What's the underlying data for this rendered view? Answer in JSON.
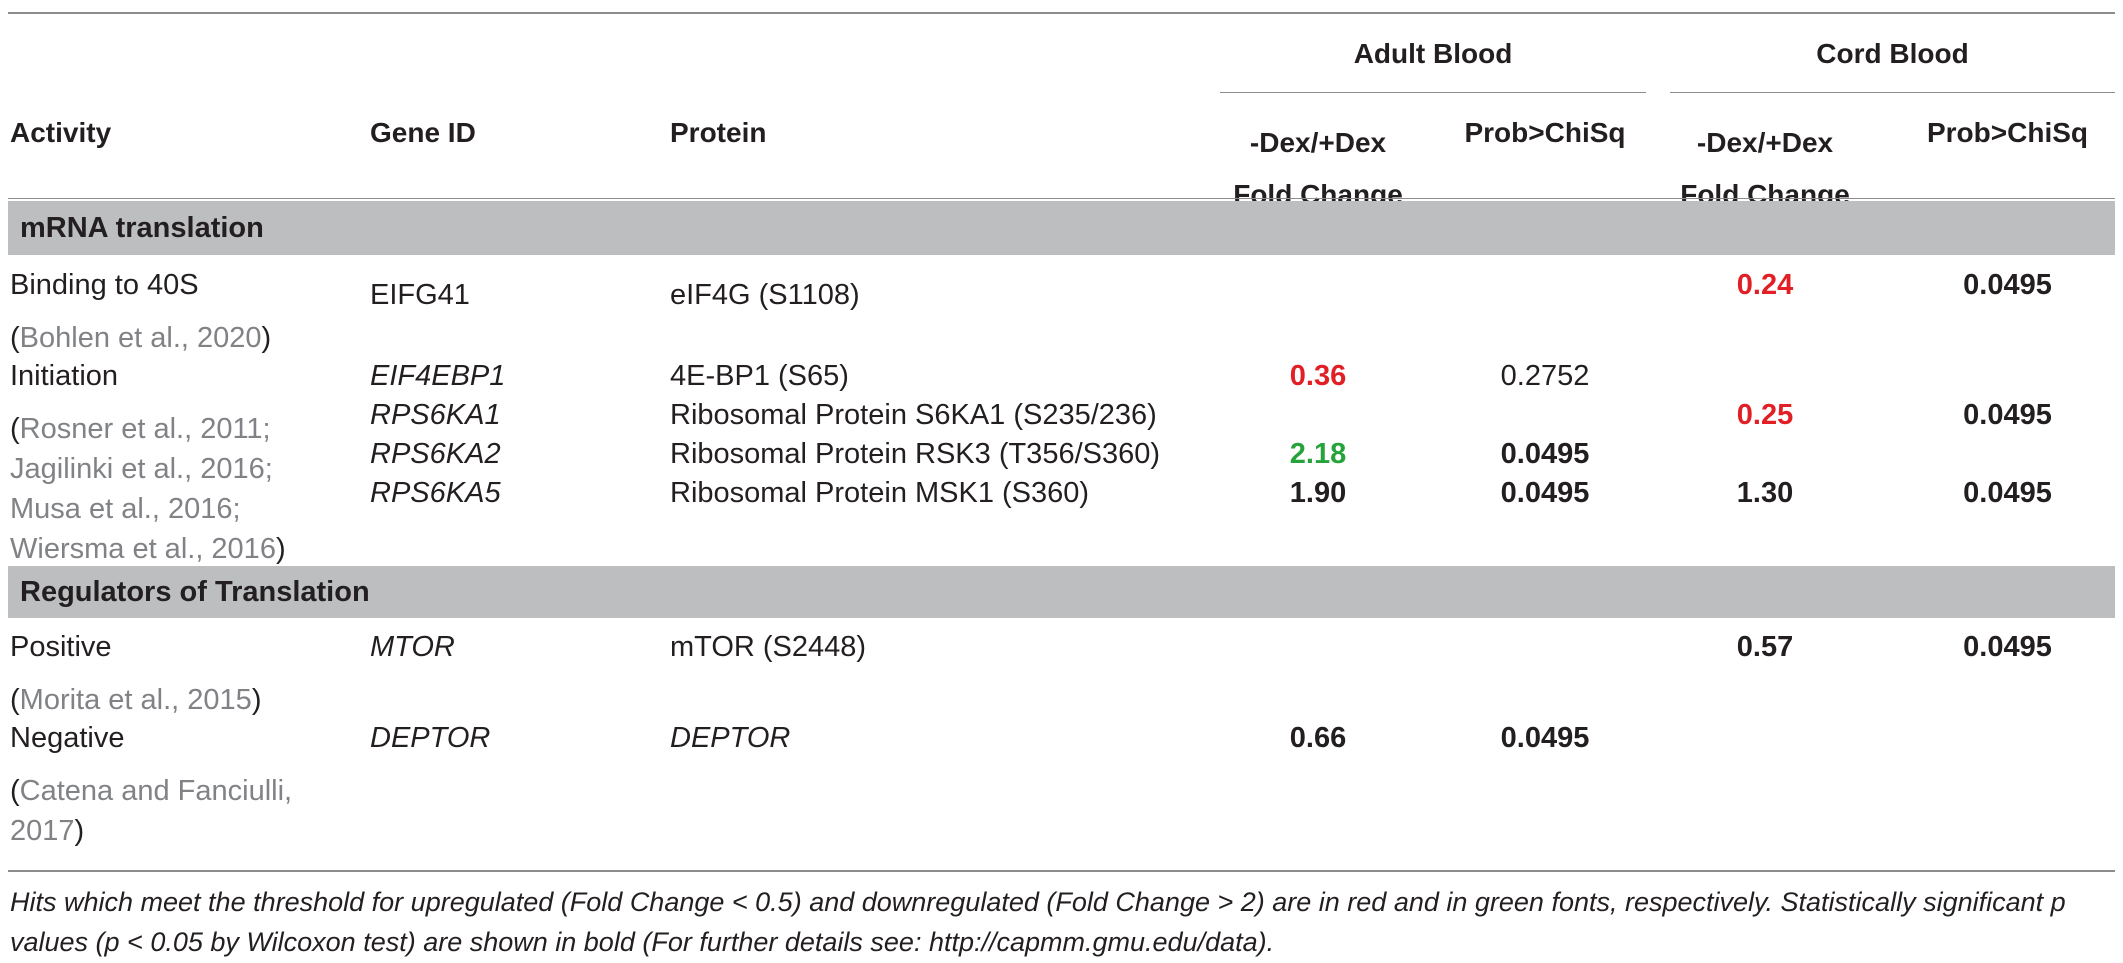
{
  "header": {
    "activity": "Activity",
    "gene_id": "Gene ID",
    "protein": "Protein",
    "adult_blood": "Adult Blood",
    "cord_blood": "Cord Blood",
    "fold_change_l1": "-Dex/+Dex",
    "fold_change_l2": "Fold Change",
    "prob": "Prob>ChiSq"
  },
  "sections": [
    {
      "title": "mRNA translation"
    },
    {
      "title": "Regulators of Translation"
    }
  ],
  "activities": [
    {
      "label": "Binding to 40S",
      "ref_pre": "(",
      "ref": "Bohlen et al., 2020",
      "ref_post": ")"
    },
    {
      "label": "Initiation",
      "ref_pre": "(",
      "ref": "Rosner et al., 2011; Jagilinki et al., 2016; Musa et al., 2016; Wiersma et al., 2016",
      "ref_post": ")"
    },
    {
      "label": "Positive",
      "ref_pre": "(",
      "ref": "Morita et al., 2015",
      "ref_post": ")"
    },
    {
      "label": "Negative",
      "ref_pre": "(",
      "ref": "Catena and Fanciulli, 2017",
      "ref_post": ")"
    }
  ],
  "rows": [
    {
      "gene": "EIFG41",
      "protein": "eIF4G (S1108)",
      "adult_fc": "",
      "adult_p": "",
      "cord_fc": "0.24",
      "cord_p": "0.0495"
    },
    {
      "gene": "EIF4EBP1",
      "protein": "4E-BP1 (S65)",
      "adult_fc": "0.36",
      "adult_p": "0.2752",
      "cord_fc": "",
      "cord_p": ""
    },
    {
      "gene": "RPS6KA1",
      "protein": "Ribosomal Protein S6KA1 (S235/236)",
      "adult_fc": "",
      "adult_p": "",
      "cord_fc": "0.25",
      "cord_p": "0.0495"
    },
    {
      "gene": "RPS6KA2",
      "protein": "Ribosomal Protein RSK3 (T356/S360)",
      "adult_fc": "2.18",
      "adult_p": "0.0495",
      "cord_fc": "",
      "cord_p": ""
    },
    {
      "gene": "RPS6KA5",
      "protein": "Ribosomal Protein MSK1 (S360)",
      "adult_fc": "1.90",
      "adult_p": "0.0495",
      "cord_fc": "1.30",
      "cord_p": "0.0495"
    },
    {
      "gene": "MTOR",
      "protein": "mTOR (S2448)",
      "adult_fc": "",
      "adult_p": "",
      "cord_fc": "0.57",
      "cord_p": "0.0495"
    },
    {
      "gene": "DEPTOR",
      "protein": "DEPTOR",
      "adult_fc": "0.66",
      "adult_p": "0.0495",
      "cord_fc": "",
      "cord_p": ""
    }
  ],
  "footnote": "Hits which meet the threshold for upregulated (Fold Change < 0.5) and downregulated (Fold Change > 2) are in red and in green fonts, respectively. Statistically significant p values (p < 0.05 by Wilcoxon test) are shown in bold (For further details see: http://capmm.gmu.edu/data).",
  "colors": {
    "red": "#e11f25",
    "green": "#26a33a",
    "band": "#bcbec0"
  }
}
